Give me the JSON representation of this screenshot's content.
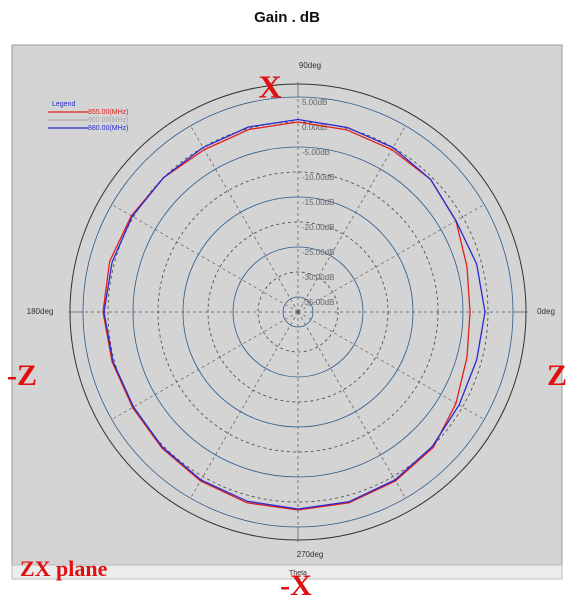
{
  "chart_data": {
    "type": "polar",
    "title": "Gain . dB",
    "axis_label": "Theta",
    "x": [
      0,
      15,
      30,
      45,
      60,
      75,
      90,
      105,
      120,
      135,
      150,
      165,
      180,
      195,
      210,
      225,
      240,
      255,
      270,
      285,
      300,
      315,
      330,
      345
    ],
    "xticks": [
      {
        "value": 0,
        "label": "0deg"
      },
      {
        "value": 90,
        "label": "90deg"
      },
      {
        "value": 180,
        "label": "180deg"
      },
      {
        "value": 270,
        "label": "270deg"
      }
    ],
    "rlim": [
      -38,
      5
    ],
    "rticks": [
      {
        "value": 5,
        "label": "5.00dB"
      },
      {
        "value": 0,
        "label": "0.00dB"
      },
      {
        "value": -5,
        "label": "-5.00dB"
      },
      {
        "value": -10,
        "label": "-10.00dB"
      },
      {
        "value": -15,
        "label": "-15.00dB"
      },
      {
        "value": -20,
        "label": "-20.00dB"
      },
      {
        "value": -25,
        "label": "-25.00dB"
      },
      {
        "value": -30,
        "label": "-30.00dB"
      },
      {
        "value": -35,
        "label": "-35.00dB"
      }
    ],
    "legend_title": "Legend",
    "legend": "upper left",
    "series": [
      {
        "name": "855.00(MHz)",
        "color": "#e0201c",
        "values": [
          -3.6,
          -3,
          -1.5,
          -0.5,
          -0.5,
          -0.3,
          0,
          -0.2,
          -0.5,
          0,
          0.5,
          1,
          1,
          0.5,
          0.2,
          0.5,
          1,
          1.5,
          1.6,
          1.5,
          1,
          0.3,
          -1.5,
          -3
        ]
      },
      {
        "name": "900.00(MHz)",
        "color": "#a8a8a8",
        "values": [
          null,
          null,
          null,
          null,
          null,
          null,
          null,
          null,
          null,
          null,
          null,
          null,
          null,
          null,
          null,
          null,
          null,
          null,
          null,
          null,
          null,
          null,
          null,
          null
        ]
      },
      {
        "name": "880.00(MHz)",
        "color": "#2a2ad0",
        "values": [
          -0.6,
          -1,
          -1.5,
          -0.5,
          0,
          0.2,
          0.5,
          0.3,
          0,
          0,
          0.3,
          0.5,
          0.8,
          0.3,
          0,
          0.3,
          0.8,
          1.2,
          1.4,
          1.3,
          0.8,
          0,
          -0.8,
          -1
        ]
      }
    ],
    "annotations": [
      "X",
      "-Z",
      "Z",
      "-X",
      "ZX plane"
    ]
  }
}
